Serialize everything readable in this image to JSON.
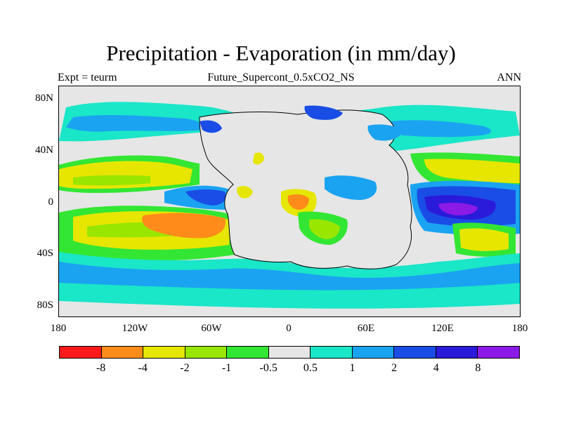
{
  "header": {
    "title": "Precipitation - Evaporation (in mm/day)",
    "subtitle": "Future_Supercont_0.5xCO2_NS",
    "left_label": "Expt = teurm",
    "right_label": "ANN"
  },
  "axes": {
    "y_ticks": [
      "80N",
      "40N",
      "0",
      "40S",
      "80S"
    ],
    "x_ticks": [
      "180",
      "120W",
      "60W",
      "0",
      "60E",
      "120E",
      "180"
    ]
  },
  "colorbar": {
    "colors": [
      "#ff1a1a",
      "#ff8c1a",
      "#e6e600",
      "#99e600",
      "#33e633",
      "#e6e6e6",
      "#1ae6c8",
      "#1aa3f0",
      "#1a4de6",
      "#2a1ad9",
      "#8c1ae6"
    ],
    "labels": [
      "-8",
      "-4",
      "-2",
      "-1",
      "-0.5",
      "0.5",
      "1",
      "2",
      "4",
      "8"
    ]
  },
  "map_colors": {
    "ocean_background": "#e6e6e6",
    "cyan": "#1ae6c8",
    "lightblue": "#1aa3f0",
    "blue": "#1a4de6",
    "darkblue": "#2a1ad9",
    "purple": "#8c1ae6",
    "green": "#33e633",
    "yellowgreen": "#99e600",
    "yellow": "#e6e600",
    "orange": "#ff8c1a",
    "land": "#e6e6e6",
    "coast": "#000000"
  }
}
